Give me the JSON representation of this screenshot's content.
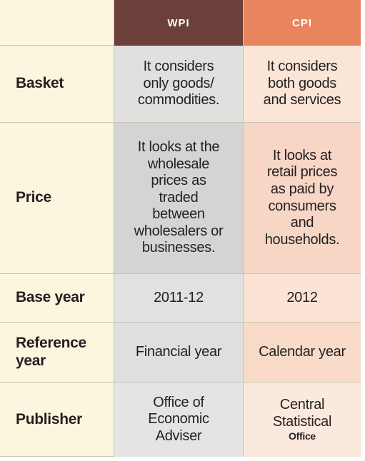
{
  "headers": {
    "wpi": "WPI",
    "cpi": "CPI"
  },
  "rows": [
    {
      "label": "Basket",
      "wpi": "It considers\nonly goods/\ncommodities.",
      "cpi": "It considers\nboth goods\nand services"
    },
    {
      "label": "Price",
      "wpi": "It looks at the\nwholesale\nprices as\ntraded\nbetween\nwholesalers or\nbusinesses.",
      "cpi": "It looks at\nretail prices\nas paid by\nconsumers\nand\nhouseholds."
    },
    {
      "label": "Base year",
      "wpi": "2011-12",
      "cpi": "2012"
    },
    {
      "label": "Reference\nyear",
      "wpi": "Financial year",
      "cpi": "Calendar year"
    },
    {
      "label": "Publisher",
      "wpi": "Office of\nEconomic\nAdviser",
      "cpi": "Central\nStatistical",
      "cpi_small": "Office"
    }
  ],
  "colors": {
    "wpi_header": "#6b3f3a",
    "cpi_header": "#e9855e",
    "label_column": "#fbf6dd",
    "wpi_column": "#d9d9d9",
    "cpi_column": "#f9dccd"
  }
}
